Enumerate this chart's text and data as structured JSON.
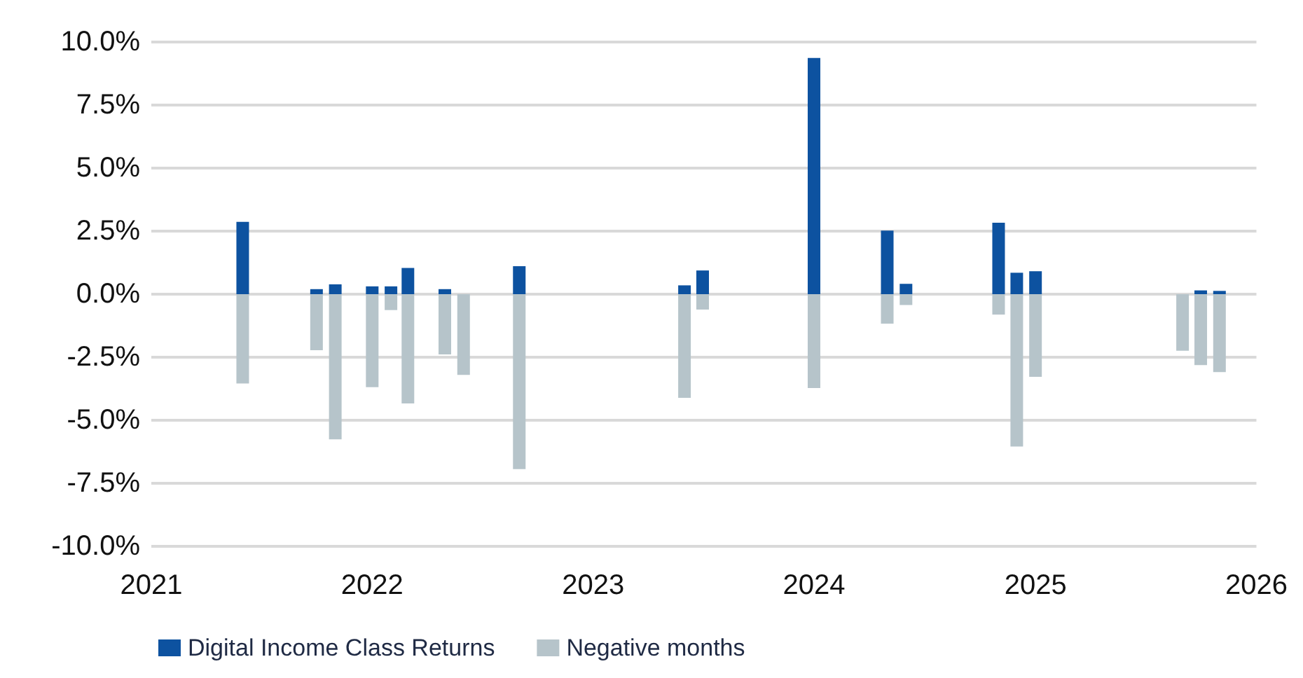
{
  "chart_data": {
    "type": "bar",
    "stacked": true,
    "x": [
      "2021-06",
      "2021-10",
      "2021-11",
      "2022-01",
      "2022-02",
      "2022-03",
      "2022-05",
      "2022-06",
      "2022-09",
      "2023-06",
      "2023-07",
      "2024-01",
      "2024-05",
      "2024-06",
      "2024-11",
      "2024-12",
      "2025-01",
      "2025-09",
      "2025-10",
      "2025-11"
    ],
    "series": [
      {
        "name": "Digital Income Class Returns",
        "color": "#0d52a0",
        "values": [
          2.87,
          0.2,
          0.39,
          0.31,
          0.31,
          1.04,
          0.2,
          null,
          1.11,
          0.35,
          0.94,
          9.37,
          2.52,
          0.41,
          2.83,
          0.85,
          0.91,
          null,
          0.15,
          0.13
        ]
      },
      {
        "name": "Negative months",
        "color": "#b6c4ca",
        "values": [
          -3.54,
          -2.22,
          -5.76,
          -3.69,
          -0.63,
          -4.33,
          -2.39,
          -3.2,
          -6.94,
          -4.11,
          -0.61,
          -3.72,
          -1.17,
          -0.43,
          -0.81,
          -6.04,
          -3.28,
          -2.24,
          -2.81,
          -3.09
        ]
      }
    ],
    "xlim": [
      "2021",
      "2026"
    ],
    "xticks": [
      "2021",
      "2022",
      "2023",
      "2024",
      "2025",
      "2026"
    ],
    "ylim": [
      -10,
      10
    ],
    "yticks": [
      {
        "value": -10,
        "label": "-10.0%"
      },
      {
        "value": -7.5,
        "label": "-7.5%"
      },
      {
        "value": -5,
        "label": "-5.0%"
      },
      {
        "value": -2.5,
        "label": "-2.5%"
      },
      {
        "value": 0,
        "label": "0.0%"
      },
      {
        "value": 2.5,
        "label": "2.5%"
      },
      {
        "value": 5,
        "label": "5.0%"
      },
      {
        "value": 7.5,
        "label": "7.5%"
      },
      {
        "value": 10,
        "label": "10.0%"
      }
    ],
    "grid": "y",
    "legend": "bottom left"
  }
}
